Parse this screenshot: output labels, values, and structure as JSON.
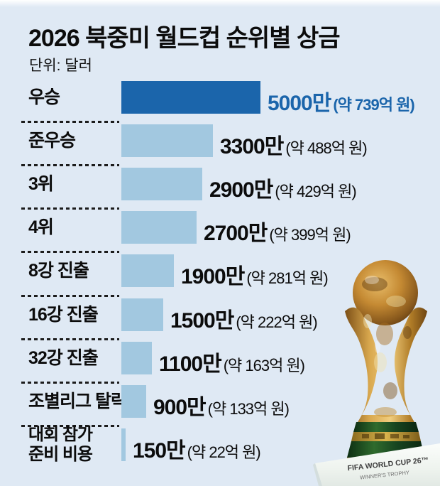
{
  "title": "2026 북중미 월드컵 순위별 상금",
  "unit_label": "단위: 달러",
  "colors": {
    "background": "#dfe9f4",
    "bar_primary": "#1b65ab",
    "bar_secondary": "#a2c8e0",
    "highlight_text": "#1b65ab",
    "text": "#0c0c0c"
  },
  "chart_data": {
    "type": "bar",
    "orientation": "horizontal",
    "title": "2026 북중미 월드컵 순위별 상금",
    "unit": "달러",
    "categories": [
      "우승",
      "준우승",
      "3위",
      "4위",
      "8강 진출",
      "16강 진출",
      "32강 진출",
      "조별리그 탈락",
      "대회 참가 준비 비용"
    ],
    "category_lines": [
      [
        "우승"
      ],
      [
        "준우승"
      ],
      [
        "3위"
      ],
      [
        "4위"
      ],
      [
        "8강 진출"
      ],
      [
        "16강 진출"
      ],
      [
        "32강 진출"
      ],
      [
        "조별리그 탈락"
      ],
      [
        "대회 참가",
        "준비 비용"
      ]
    ],
    "values_usd": [
      50000000,
      33000000,
      29000000,
      27000000,
      19000000,
      15000000,
      11000000,
      9000000,
      1500000
    ],
    "value_labels": [
      "5000만",
      "3300만",
      "2900만",
      "2700만",
      "1900만",
      "1500만",
      "1100만",
      "900만",
      "150만"
    ],
    "value_sublabels": [
      "(약 739억 원)",
      "(약 488억 원)",
      "(약 429억 원)",
      "(약 399억 원)",
      "(약 281억 원)",
      "(약 222억 원)",
      "(약 163억 원)",
      "(약 133억 원)",
      "(약 22억 원)"
    ],
    "krw_approx_100m": [
      739,
      488,
      429,
      399,
      281,
      222,
      163,
      133,
      22
    ],
    "max_value": 50000000,
    "highlight_index": 0,
    "legend": "none",
    "grid": "off"
  },
  "trophy": {
    "alt": "FIFA 월드컵 트로피 사진",
    "caption_line1": "FIFA WORLD CUP 26™",
    "caption_line2": "WINNER'S TROPHY"
  }
}
